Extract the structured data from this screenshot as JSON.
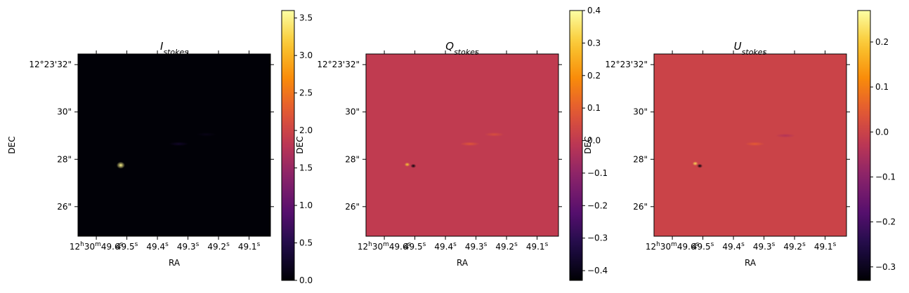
{
  "chart_data": [
    {
      "type": "heatmap",
      "title_base": "I",
      "title_sub": "stokes",
      "xlabel": "RA",
      "ylabel": "DEC",
      "x_ticks": [
        "12h30m49.6s",
        "49.5s",
        "49.4s",
        "49.3s",
        "49.2s",
        "49.1s"
      ],
      "y_ticks": [
        "12°23'32\"",
        "30\"",
        "28\"",
        "26\""
      ],
      "colormap": "inferno",
      "colorbar": {
        "min": 0.0,
        "max": 3.6,
        "ticks": [
          "0.0",
          "0.5",
          "1.0",
          "1.5",
          "2.0",
          "2.5",
          "3.0",
          "3.5"
        ]
      },
      "background_value": 0.02,
      "features": [
        {
          "x": 49.52,
          "y": 27.75,
          "value": 3.5,
          "kind": "peak"
        },
        {
          "x": 49.33,
          "y": 28.65,
          "value": 0.25,
          "kind": "blob"
        },
        {
          "x": 49.24,
          "y": 29.05,
          "value": 0.12,
          "kind": "blob"
        }
      ]
    },
    {
      "type": "heatmap",
      "title_base": "Q",
      "title_sub": "stokes",
      "xlabel": "RA",
      "ylabel": "DEC",
      "x_ticks": [
        "12h30m49.6s",
        "49.5s",
        "49.4s",
        "49.3s",
        "49.2s",
        "49.1s"
      ],
      "y_ticks": [
        "12°23'32\"",
        "30\"",
        "28\"",
        "26\""
      ],
      "colormap": "inferno",
      "colorbar": {
        "min": -0.43,
        "max": 0.4,
        "ticks": [
          "−0.4",
          "−0.3",
          "−0.2",
          "−0.1",
          "0.0",
          "0.1",
          "0.2",
          "0.3",
          "0.4"
        ]
      },
      "background_value": 0.0,
      "features": [
        {
          "x": 49.525,
          "y": 27.78,
          "value": 0.3,
          "kind": "dipole_pos"
        },
        {
          "x": 49.505,
          "y": 27.72,
          "value": -0.42,
          "kind": "dipole_neg"
        },
        {
          "x": 49.32,
          "y": 28.65,
          "value": 0.08,
          "kind": "blob"
        },
        {
          "x": 49.24,
          "y": 29.05,
          "value": 0.06,
          "kind": "blob"
        }
      ]
    },
    {
      "type": "heatmap",
      "title_base": "U",
      "title_sub": "stokes",
      "xlabel": "RA",
      "ylabel": "DEC",
      "x_ticks": [
        "12h30m49.6s",
        "49.5s",
        "49.4s",
        "49.3s",
        "49.2s",
        "49.1s"
      ],
      "y_ticks": [
        "12°23'32\"",
        "30\"",
        "28\"",
        "26\""
      ],
      "colormap": "inferno",
      "colorbar": {
        "min": -0.33,
        "max": 0.27,
        "ticks": [
          "−0.3",
          "−0.2",
          "−0.1",
          "0.0",
          "0.1",
          "0.2"
        ]
      },
      "background_value": 0.0,
      "features": [
        {
          "x": 49.525,
          "y": 27.82,
          "value": 0.22,
          "kind": "dipole_pos"
        },
        {
          "x": 49.51,
          "y": 27.72,
          "value": -0.32,
          "kind": "dipole_neg"
        },
        {
          "x": 49.33,
          "y": 28.65,
          "value": 0.05,
          "kind": "blob"
        },
        {
          "x": 49.23,
          "y": 29.0,
          "value": -0.04,
          "kind": "blob"
        }
      ]
    }
  ]
}
